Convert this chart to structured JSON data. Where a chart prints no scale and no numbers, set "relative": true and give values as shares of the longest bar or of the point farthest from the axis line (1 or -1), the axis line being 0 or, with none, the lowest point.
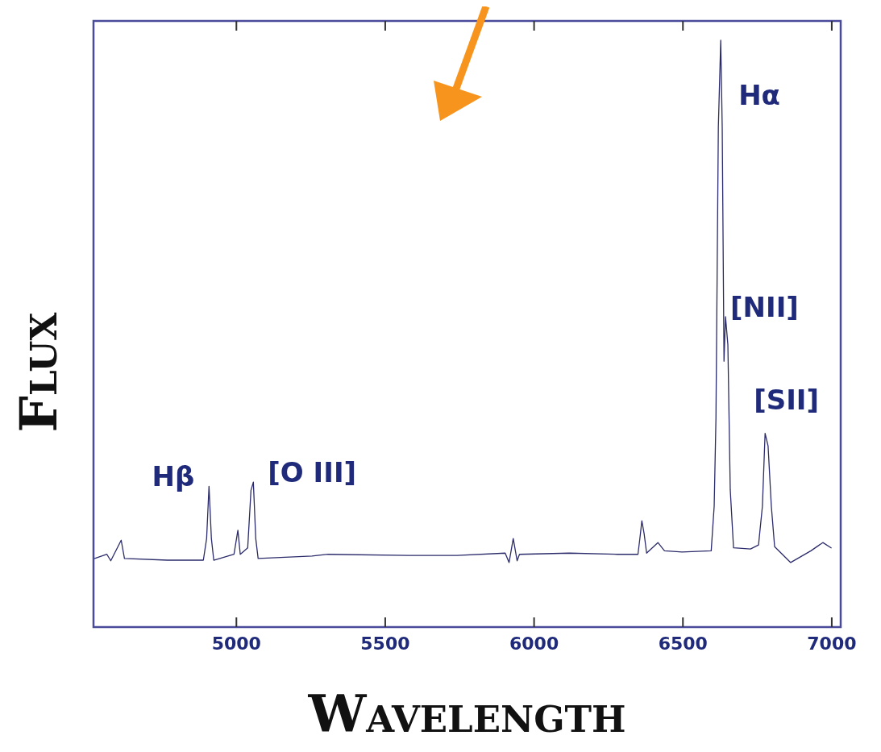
{
  "chart_data": {
    "type": "line",
    "relative": true,
    "xlabel": "Wavelength",
    "ylabel": "Flux",
    "xlim": [
      4520,
      7030
    ],
    "xticks": [
      5000,
      5500,
      6000,
      6500,
      7000
    ],
    "series": [
      {
        "color": "#2b2b6b",
        "x": [
          4524,
          4565,
          4578,
          4613,
          4624,
          4768,
          4889,
          4900,
          4908,
          4916,
          4924,
          4992,
          5005,
          5013,
          5038,
          5049,
          5057,
          5065,
          5073,
          5254,
          5308,
          5578,
          5741,
          5903,
          5916,
          5930,
          5943,
          5951,
          6119,
          6281,
          6349,
          6357,
          6362,
          6370,
          6378,
          6416,
          6438,
          6497,
          6595,
          6605,
          6611,
          6619,
          6627,
          6632,
          6638,
          6643,
          6651,
          6659,
          6670,
          6727,
          6754,
          6767,
          6776,
          6786,
          6797,
          6808,
          6862,
          6930,
          6970,
          6998
        ],
        "values": [
          0.117,
          0.124,
          0.113,
          0.148,
          0.117,
          0.114,
          0.114,
          0.151,
          0.24,
          0.151,
          0.114,
          0.124,
          0.165,
          0.124,
          0.135,
          0.233,
          0.247,
          0.151,
          0.117,
          0.121,
          0.124,
          0.122,
          0.122,
          0.126,
          0.11,
          0.151,
          0.113,
          0.124,
          0.126,
          0.124,
          0.124,
          0.158,
          0.181,
          0.158,
          0.126,
          0.144,
          0.13,
          0.128,
          0.13,
          0.206,
          0.357,
          0.852,
          1.0,
          0.852,
          0.453,
          0.529,
          0.481,
          0.234,
          0.135,
          0.133,
          0.14,
          0.206,
          0.33,
          0.309,
          0.206,
          0.137,
          0.11,
          0.13,
          0.144,
          0.135
        ]
      }
    ],
    "annotations": [
      {
        "text": "Hβ",
        "x": 4908,
        "y": 0.24
      },
      {
        "text": "[O III]",
        "x": 5057,
        "y": 0.247
      },
      {
        "text": "Hα",
        "x": 6627,
        "y": 1.0
      },
      {
        "text": "[NII]",
        "x": 6643,
        "y": 0.529
      },
      {
        "text": "[SII]",
        "x": 6776,
        "y": 0.33
      }
    ]
  }
}
